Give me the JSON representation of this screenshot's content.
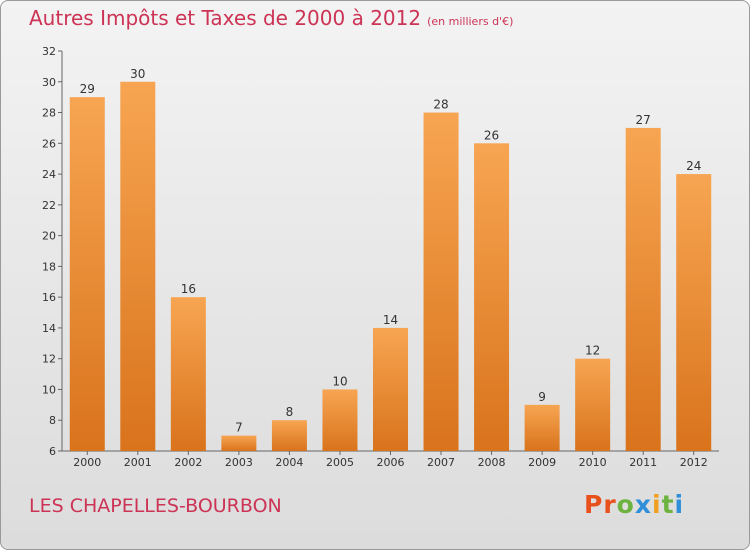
{
  "header": {
    "title": "Autres Impôts et Taxes de 2000 à 2012",
    "unit": "(en milliers d'€)"
  },
  "footer": {
    "commune": "LES CHAPELLES-BOURBON",
    "logo": "Proxiti"
  },
  "colors": {
    "title": "#cc3355",
    "bar_top": "#f7a552",
    "bar_bottom": "#d9731c",
    "logo_letters": [
      "#e8501c",
      "#e8501c",
      "#6cb33f",
      "#2f8fd8",
      "#f0a020",
      "#6cb33f",
      "#2f8fd8"
    ]
  },
  "chart_data": {
    "type": "bar",
    "title": "Autres Impôts et Taxes de 2000 à 2012",
    "subtitle": "(en milliers d'€)",
    "xlabel": "",
    "ylabel": "",
    "categories": [
      "2000",
      "2001",
      "2002",
      "2003",
      "2004",
      "2005",
      "2006",
      "2007",
      "2008",
      "2009",
      "2010",
      "2011",
      "2012"
    ],
    "values": [
      29,
      30,
      16,
      7,
      8,
      10,
      14,
      28,
      26,
      9,
      12,
      27,
      24
    ],
    "ylim": [
      6,
      32
    ],
    "yticks": [
      6,
      8,
      10,
      12,
      14,
      16,
      18,
      20,
      22,
      24,
      26,
      28,
      30,
      32
    ],
    "grid": false,
    "data_labels": true
  }
}
